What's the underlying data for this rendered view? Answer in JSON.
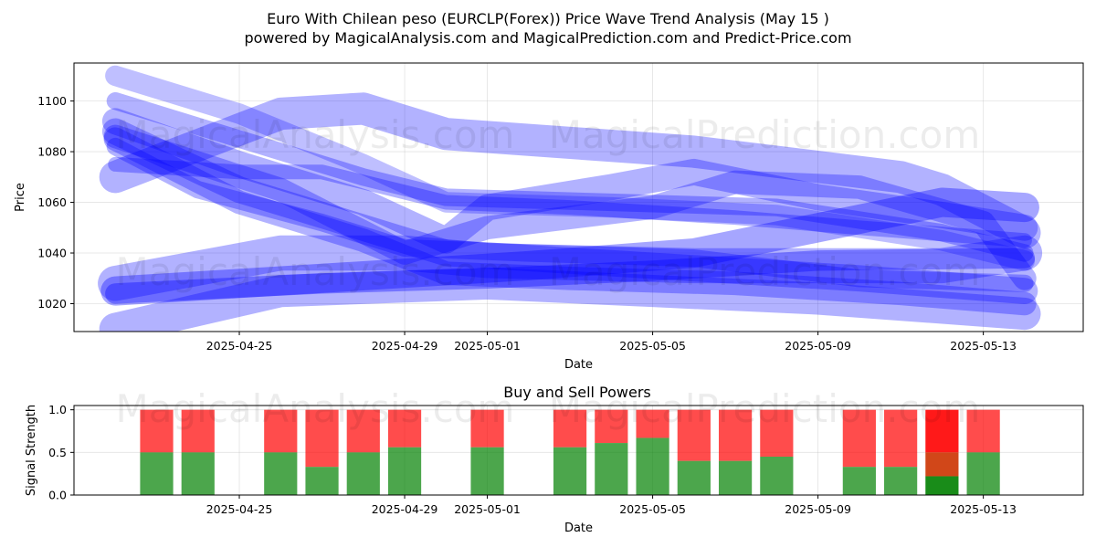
{
  "title_line1": "Euro With Chilean peso (EURCLP(Forex)) Price Wave Trend Analysis (May 15 )",
  "title_line2": "powered by MagicalAnalysis.com and MagicalPrediction.com and Predict-Price.com",
  "watermark_left": "MagicalAnalysis.com",
  "watermark_right": "MagicalPrediction.com",
  "colors": {
    "wave": "#0000ff",
    "buy": "#008000",
    "sell": "#ff0000",
    "sell_strong": "#ff0000",
    "sell_mixed": "#cc3300"
  },
  "chart_data": [
    {
      "type": "area",
      "title": "",
      "xlabel": "Date",
      "ylabel": "Price",
      "x_ticks": [
        "2025-04-25",
        "2025-04-29",
        "2025-05-01",
        "2025-05-05",
        "2025-05-09",
        "2025-05-13"
      ],
      "y_ticks": [
        1020,
        1040,
        1060,
        1080,
        1100
      ],
      "xlim": [
        "2025-04-21T00:00",
        "2025-05-15T10:00"
      ],
      "ylim": [
        1009,
        1115
      ],
      "grid": true,
      "waves": [
        {
          "width": 22,
          "opacity": 0.3,
          "points": [
            [
              "2025-04-22",
              1070
            ],
            [
              "2025-04-26",
              1095
            ],
            [
              "2025-04-28",
              1097
            ],
            [
              "2025-04-30",
              1087
            ],
            [
              "2025-05-06",
              1080
            ],
            [
              "2025-05-11",
              1070
            ],
            [
              "2025-05-12",
              1065
            ],
            [
              "2025-05-14",
              1048
            ]
          ]
        },
        {
          "width": 24,
          "opacity": 0.3,
          "points": [
            [
              "2025-04-22",
              1028
            ],
            [
              "2025-04-26",
              1040
            ],
            [
              "2025-04-29",
              1040
            ],
            [
              "2025-05-01",
              1037
            ],
            [
              "2025-05-06",
              1035
            ],
            [
              "2025-05-12",
              1035
            ],
            [
              "2025-05-14",
              1040
            ]
          ]
        },
        {
          "width": 22,
          "opacity": 0.3,
          "points": [
            [
              "2025-04-22",
              1010
            ],
            [
              "2025-04-26",
              1025
            ],
            [
              "2025-05-01",
              1028
            ],
            [
              "2025-05-05",
              1025
            ],
            [
              "2025-05-09",
              1022
            ],
            [
              "2025-05-14",
              1016
            ]
          ]
        },
        {
          "width": 20,
          "opacity": 0.35,
          "points": [
            [
              "2025-04-22",
              1025
            ],
            [
              "2025-04-25",
              1028
            ],
            [
              "2025-04-29",
              1032
            ],
            [
              "2025-05-02",
              1035
            ],
            [
              "2025-05-06",
              1040
            ],
            [
              "2025-05-09",
              1050
            ],
            [
              "2025-05-12",
              1060
            ],
            [
              "2025-05-14",
              1058
            ]
          ]
        },
        {
          "width": 14,
          "opacity": 0.35,
          "points": [
            [
              "2025-04-22",
              1024
            ],
            [
              "2025-04-27",
              1028
            ],
            [
              "2025-05-01",
              1030
            ],
            [
              "2025-05-05",
              1033
            ],
            [
              "2025-05-09",
              1037
            ],
            [
              "2025-05-14",
              1038
            ]
          ]
        },
        {
          "width": 18,
          "opacity": 0.3,
          "points": [
            [
              "2025-04-22",
              1088
            ],
            [
              "2025-04-25",
              1065
            ],
            [
              "2025-04-28",
              1050
            ],
            [
              "2025-04-30",
              1040
            ],
            [
              "2025-05-02",
              1038
            ],
            [
              "2025-05-06",
              1034
            ],
            [
              "2025-05-10",
              1030
            ],
            [
              "2025-05-14",
              1025
            ]
          ]
        },
        {
          "width": 16,
          "opacity": 0.3,
          "points": [
            [
              "2025-04-22",
              1085
            ],
            [
              "2025-04-25",
              1060
            ],
            [
              "2025-04-28",
              1045
            ],
            [
              "2025-04-30",
              1032
            ],
            [
              "2025-05-03",
              1030
            ],
            [
              "2025-05-07",
              1028
            ],
            [
              "2025-05-11",
              1024
            ],
            [
              "2025-05-14",
              1020
            ]
          ]
        },
        {
          "width": 18,
          "opacity": 0.3,
          "points": [
            [
              "2025-04-22",
              1092
            ],
            [
              "2025-04-25",
              1075
            ],
            [
              "2025-04-28",
              1060
            ],
            [
              "2025-04-30",
              1045
            ],
            [
              "2025-05-01",
              1058
            ],
            [
              "2025-05-04",
              1066
            ],
            [
              "2025-05-06",
              1072
            ],
            [
              "2025-05-09",
              1062
            ],
            [
              "2025-05-12",
              1055
            ],
            [
              "2025-05-14",
              1050
            ]
          ]
        },
        {
          "width": 16,
          "opacity": 0.3,
          "points": [
            [
              "2025-04-22",
              1086
            ],
            [
              "2025-04-26",
              1065
            ],
            [
              "2025-04-29",
              1040
            ],
            [
              "2025-05-01",
              1050
            ],
            [
              "2025-05-05",
              1058
            ],
            [
              "2025-05-07",
              1068
            ],
            [
              "2025-05-10",
              1066
            ],
            [
              "2025-05-13",
              1052
            ],
            [
              "2025-05-14",
              1030
            ]
          ]
        },
        {
          "width": 14,
          "opacity": 0.25,
          "points": [
            [
              "2025-04-22",
              1110
            ],
            [
              "2025-04-25",
              1095
            ],
            [
              "2025-04-28",
              1075
            ],
            [
              "2025-04-30",
              1060
            ],
            [
              "2025-05-04",
              1058
            ],
            [
              "2025-05-08",
              1055
            ],
            [
              "2025-05-12",
              1045
            ],
            [
              "2025-05-14",
              1037
            ]
          ]
        },
        {
          "width": 12,
          "opacity": 0.3,
          "points": [
            [
              "2025-04-22",
              1100
            ],
            [
              "2025-04-25",
              1085
            ],
            [
              "2025-04-28",
              1070
            ],
            [
              "2025-04-30",
              1062
            ],
            [
              "2025-05-04",
              1060
            ],
            [
              "2025-05-08",
              1058
            ],
            [
              "2025-05-12",
              1048
            ],
            [
              "2025-05-14",
              1040
            ]
          ]
        },
        {
          "width": 12,
          "opacity": 0.3,
          "points": [
            [
              "2025-04-22",
              1082
            ],
            [
              "2025-04-24",
              1065
            ],
            [
              "2025-04-27",
              1052
            ],
            [
              "2025-04-29",
              1042
            ],
            [
              "2025-05-02",
              1040
            ],
            [
              "2025-05-06",
              1038
            ],
            [
              "2025-05-10",
              1030
            ],
            [
              "2025-05-14",
              1028
            ]
          ]
        },
        {
          "width": 10,
          "opacity": 0.3,
          "points": [
            [
              "2025-04-22",
              1075
            ],
            [
              "2025-04-25",
              1072
            ],
            [
              "2025-04-27",
              1072
            ],
            [
              "2025-04-30",
              1060
            ],
            [
              "2025-05-03",
              1058
            ],
            [
              "2025-05-07",
              1054
            ],
            [
              "2025-05-10",
              1050
            ],
            [
              "2025-05-14",
              1045
            ]
          ]
        }
      ]
    },
    {
      "type": "bar",
      "title": "Buy and Sell Powers",
      "xlabel": "Date",
      "ylabel": "Signal Strength",
      "x_ticks": [
        "2025-04-25",
        "2025-04-29",
        "2025-05-01",
        "2025-05-05",
        "2025-05-09",
        "2025-05-13"
      ],
      "y_ticks": [
        0.0,
        0.5,
        1.0
      ],
      "y_tick_labels": [
        "0.0",
        "0.5",
        "1.0"
      ],
      "ylim": [
        0,
        1.05
      ],
      "grid": true,
      "series": [
        {
          "name": "Buy",
          "color": "#4caf50"
        },
        {
          "name": "Sell",
          "color": "#ff4d4d"
        }
      ],
      "bars": [
        {
          "date": "2025-04-23",
          "buy": 0.5
        },
        {
          "date": "2025-04-24",
          "buy": 0.5
        },
        {
          "date": "2025-04-26",
          "buy": 0.5
        },
        {
          "date": "2025-04-27",
          "buy": 0.33
        },
        {
          "date": "2025-04-28",
          "buy": 0.5
        },
        {
          "date": "2025-04-29",
          "buy": 0.56
        },
        {
          "date": "2025-05-01",
          "buy": 0.56
        },
        {
          "date": "2025-05-03",
          "buy": 0.56
        },
        {
          "date": "2025-05-04",
          "buy": 0.61
        },
        {
          "date": "2025-05-05",
          "buy": 0.67
        },
        {
          "date": "2025-05-06",
          "buy": 0.4
        },
        {
          "date": "2025-05-07",
          "buy": 0.4
        },
        {
          "date": "2025-05-08",
          "buy": 0.45
        },
        {
          "date": "2025-05-10",
          "buy": 0.33
        },
        {
          "date": "2025-05-11",
          "buy": 0.33
        },
        {
          "date": "2025-05-12",
          "buy": 0.22,
          "mixed": 0.28,
          "strong_sell": true
        },
        {
          "date": "2025-05-13",
          "buy": 0.5
        }
      ]
    }
  ]
}
